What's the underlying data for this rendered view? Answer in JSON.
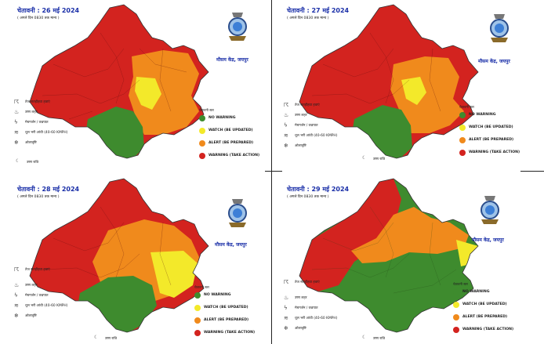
{
  "colors": {
    "no_warning": "#3e8b2e",
    "watch": "#f3e92a",
    "alert": "#f08a1c",
    "warning": "#d3231f",
    "title_blue": "#1a2fa8"
  },
  "legend": {
    "heading": "चेतावनी स्तर",
    "items": [
      {
        "label": "NO WARNING",
        "color": "#3e8b2e"
      },
      {
        "label": "WATCH (BE UPDATED)",
        "color": "#f3e92a"
      },
      {
        "label": "ALERT (BE PREPARED)",
        "color": "#f08a1c"
      },
      {
        "label": "WARNING (TAKE ACTION)",
        "color": "#d3231f"
      }
    ]
  },
  "phenomena": [
    {
      "icon": "thunderstorm-icon",
      "glyph": "☈",
      "label": "तेज सतहीहवा हवाएं"
    },
    {
      "icon": "heatwave-icon",
      "glyph": "♨",
      "label": "उष्ण लहर"
    },
    {
      "icon": "lightning-icon",
      "glyph": "ϟ",
      "label": "मेघगर्जन / वज्रपात"
    },
    {
      "icon": "duststorm-icon",
      "glyph": "≋",
      "label": "धूल भरी आंधी (40-60 KMPH)"
    },
    {
      "icon": "hail-icon",
      "glyph": "❄",
      "label": "ओलावृष्टि"
    },
    {
      "icon": "warm-night-icon",
      "glyph": "☾",
      "label": "उष्ण रात्रि"
    }
  ],
  "office_name": "मौसम केंद्र, जयपुर",
  "subtitle": "( अगले दिन 0830 तक मान्य )",
  "panels": [
    {
      "title": "चेतावनी : 26 मई 2024"
    },
    {
      "title": "चेतावनी : 27 मई 2024"
    },
    {
      "title": "चेतावनी : 28 मई 2024"
    },
    {
      "title": "चेतावनी : 29 मई 2024"
    }
  ]
}
